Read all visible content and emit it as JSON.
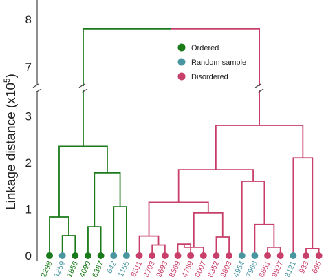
{
  "chart_data": {
    "type": "dendrogram",
    "ylabel": "Linkage distance (x10",
    "ylabel_sup": "5",
    "ylabel_close": ")",
    "axis_break": true,
    "y_ticks_lower": [
      0,
      1,
      2,
      3
    ],
    "y_ticks_upper": [
      7,
      8
    ],
    "legend": {
      "position": "top-right",
      "entries": [
        {
          "label": "Ordered",
          "color": "#1a7a1a"
        },
        {
          "label": "Random sample",
          "color": "#4a96a0"
        },
        {
          "label": "Disordered",
          "color": "#c8406a"
        }
      ]
    },
    "colors": {
      "ordered": "#1a7a1a",
      "random": "#4a96a0",
      "disordered": "#c8406a"
    },
    "leaves": [
      {
        "label": "2298",
        "group": "ordered"
      },
      {
        "label": "1259",
        "group": "random"
      },
      {
        "label": "1856",
        "group": "ordered"
      },
      {
        "label": "4090",
        "group": "ordered"
      },
      {
        "label": "6387",
        "group": "ordered"
      },
      {
        "label": "642",
        "group": "random"
      },
      {
        "label": "1155",
        "group": "random"
      },
      {
        "label": "8511",
        "group": "disordered"
      },
      {
        "label": "3703",
        "group": "disordered"
      },
      {
        "label": "9693",
        "group": "disordered"
      },
      {
        "label": "8569",
        "group": "disordered"
      },
      {
        "label": "4789",
        "group": "disordered"
      },
      {
        "label": "6007",
        "group": "disordered"
      },
      {
        "label": "8352",
        "group": "disordered"
      },
      {
        "label": "9803",
        "group": "disordered"
      },
      {
        "label": "4954",
        "group": "random"
      },
      {
        "label": "7968",
        "group": "random"
      },
      {
        "label": "6851",
        "group": "disordered"
      },
      {
        "label": "9927",
        "group": "disordered"
      },
      {
        "label": "9121",
        "group": "random"
      },
      {
        "label": "933",
        "group": "disordered"
      },
      {
        "label": "665",
        "group": "disordered"
      }
    ],
    "merges": [
      {
        "left": 1,
        "right": 2,
        "height": 0.43,
        "color": "ordered"
      },
      {
        "left": 0,
        "right": "m1",
        "height": 0.83,
        "color": "ordered"
      },
      {
        "left": 3,
        "right": 4,
        "height": 0.62,
        "color": "ordered"
      },
      {
        "left": 5,
        "right": 6,
        "height": 1.05,
        "color": "ordered"
      },
      {
        "left": "m3",
        "right": "m4",
        "height": 1.78,
        "color": "ordered"
      },
      {
        "left": "m2",
        "right": "m5",
        "height": 2.35,
        "color": "ordered"
      },
      {
        "left": 8,
        "right": 9,
        "height": 0.23,
        "color": "disordered"
      },
      {
        "left": 7,
        "right": "m7",
        "height": 0.42,
        "color": "disordered"
      },
      {
        "left": 10,
        "right": 11,
        "height": 0.25,
        "color": "disordered"
      },
      {
        "left": "m9",
        "right": 12,
        "height": 0.18,
        "color": "disordered"
      },
      {
        "left": 13,
        "right": 14,
        "height": 0.4,
        "color": "disordered"
      },
      {
        "left": "m10",
        "right": "m11",
        "height": 0.92,
        "color": "disordered"
      },
      {
        "left": "m8",
        "right": "m12",
        "height": 1.15,
        "color": "disordered"
      },
      {
        "left": 17,
        "right": 18,
        "height": 0.18,
        "color": "disordered"
      },
      {
        "left": 16,
        "right": "m14",
        "height": 0.67,
        "color": "disordered"
      },
      {
        "left": 15,
        "right": "m15",
        "height": 1.6,
        "color": "disordered"
      },
      {
        "left": "m13",
        "right": "m16",
        "height": 1.85,
        "color": "disordered"
      },
      {
        "left": 20,
        "right": 21,
        "height": 0.15,
        "color": "disordered"
      },
      {
        "left": 19,
        "right": "m18",
        "height": 2.1,
        "color": "disordered"
      },
      {
        "left": "m17",
        "right": "m19",
        "height": 2.8,
        "color": "disordered"
      },
      {
        "left": "m6",
        "right": "m20",
        "height": 7.8,
        "color": "mixed"
      }
    ]
  }
}
